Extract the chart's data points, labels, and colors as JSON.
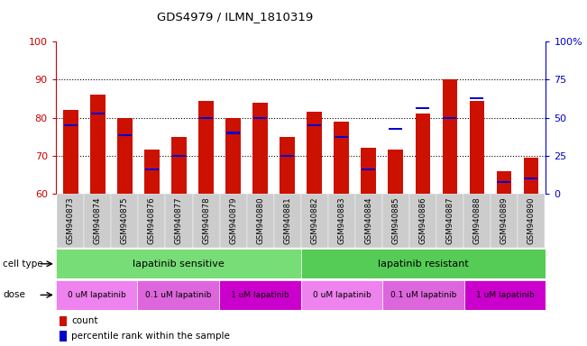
{
  "title": "GDS4979 / ILMN_1810319",
  "samples": [
    "GSM940873",
    "GSM940874",
    "GSM940875",
    "GSM940876",
    "GSM940877",
    "GSM940878",
    "GSM940879",
    "GSM940880",
    "GSM940881",
    "GSM940882",
    "GSM940883",
    "GSM940884",
    "GSM940885",
    "GSM940886",
    "GSM940887",
    "GSM940888",
    "GSM940889",
    "GSM940890"
  ],
  "bar_values": [
    82,
    86,
    80,
    71.5,
    75,
    84.5,
    80,
    84,
    75,
    81.5,
    79,
    72,
    71.5,
    81,
    90,
    84.5,
    66,
    69.5
  ],
  "blue_values": [
    78,
    81,
    75.5,
    66.5,
    70,
    80,
    76,
    80,
    70,
    78,
    75,
    66.5,
    77,
    82.5,
    80,
    85,
    63,
    64
  ],
  "ylim_left": [
    60,
    100
  ],
  "ylim_right": [
    0,
    100
  ],
  "yticks_left": [
    60,
    70,
    80,
    90,
    100
  ],
  "yticks_right": [
    0,
    25,
    50,
    75,
    100
  ],
  "left_axis_color": "#cc0000",
  "right_axis_color": "#0000cc",
  "bar_color": "#cc1100",
  "blue_color": "#0000cc",
  "grid_color": "#000000",
  "cell_type_labels": [
    "lapatinib sensitive",
    "lapatinib resistant"
  ],
  "cell_type_colors": [
    "#77dd77",
    "#55cc55"
  ],
  "dose_colors": [
    "#ee82ee",
    "#dd66dd",
    "#cc00cc"
  ],
  "dose_labels": [
    "0 uM lapatinib",
    "0.1 uM lapatinib",
    "1 uM lapatinib"
  ],
  "legend_items": [
    {
      "label": "count",
      "color": "#cc1100"
    },
    {
      "label": "percentile rank within the sample",
      "color": "#0000cc"
    }
  ],
  "bar_width": 0.55,
  "background_color": "#ffffff",
  "tick_bg_color": "#cccccc"
}
